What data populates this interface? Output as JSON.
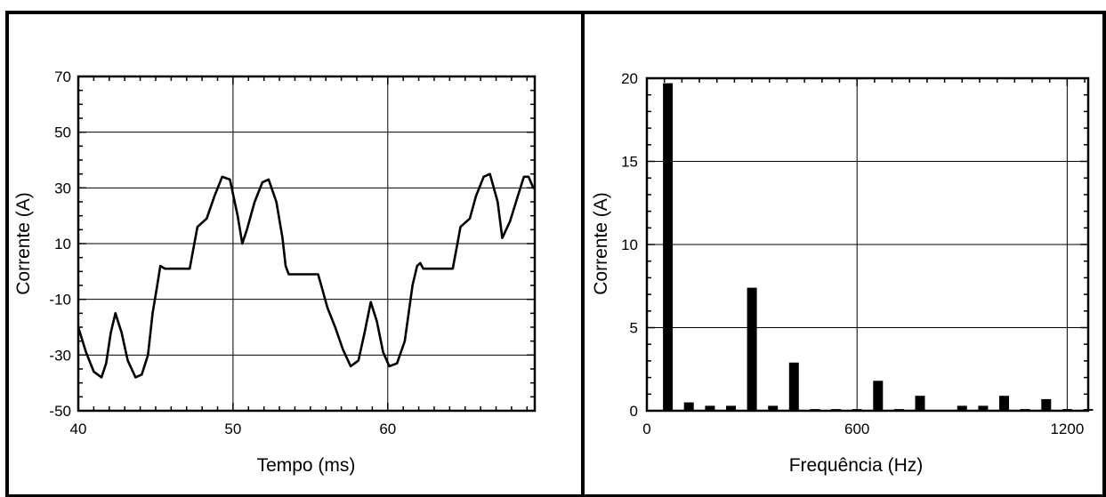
{
  "chart_data": [
    {
      "type": "line",
      "xlabel": "Tempo (ms)",
      "ylabel": "Corrente (A)",
      "xlim": [
        40,
        69.5
      ],
      "ylim": [
        -50,
        70
      ],
      "x_ticks": [
        40,
        50,
        60
      ],
      "y_ticks": [
        -50,
        -30,
        -10,
        10,
        30,
        50,
        70
      ],
      "x_grid": [
        50,
        60
      ],
      "y_grid": [
        -50,
        -30,
        -10,
        10,
        30,
        50,
        70
      ],
      "series": [
        {
          "x": [
            40,
            40.5,
            41,
            41.5,
            41.8,
            42.1,
            42.4,
            42.8,
            43.2,
            43.7,
            44.1,
            44.5,
            44.8,
            45.1,
            45.3,
            45.6,
            47.2,
            47.5,
            47.7,
            48.3,
            48.8,
            49.3,
            49.8,
            50.3,
            50.6,
            50.9,
            51.4,
            51.9,
            52.3,
            52.8,
            53.2,
            53.4,
            53.6,
            55.5,
            55.8,
            56.1,
            56.6,
            57.1,
            57.6,
            58.1,
            58.5,
            58.9,
            59.3,
            59.7,
            60.1,
            60.6,
            61.1,
            61.6,
            61.9,
            62.1,
            62.3,
            64.2,
            64.5,
            64.7,
            65.3,
            65.7,
            66.2,
            66.6,
            67.1,
            67.4,
            67.9,
            68.4,
            68.8,
            69.1,
            69.4
          ],
          "y": [
            -20,
            -29,
            -36,
            -38,
            -33,
            -22,
            -15,
            -22,
            -32,
            -38,
            -37,
            -30,
            -15,
            -5,
            2,
            1,
            1,
            10,
            16,
            19,
            27,
            34,
            33,
            20,
            10,
            15,
            25,
            32,
            33,
            25,
            12,
            2,
            -1,
            -1,
            -7,
            -13,
            -20,
            -28,
            -34,
            -32,
            -22,
            -11,
            -18,
            -29,
            -34,
            -33,
            -25,
            -5,
            2,
            3,
            1,
            1,
            10,
            16,
            19,
            27,
            34,
            35,
            25,
            12,
            18,
            27,
            34,
            34,
            30
          ]
        }
      ]
    },
    {
      "type": "bar",
      "xlabel": "Frequência (Hz)",
      "ylabel": "Corrente (A)",
      "xlim": [
        0,
        1260
      ],
      "ylim": [
        0,
        20
      ],
      "x_ticks": [
        0,
        600,
        1200
      ],
      "y_ticks": [
        0,
        5,
        10,
        15,
        20
      ],
      "x_grid": [
        600,
        1200
      ],
      "y_grid": [
        5,
        10,
        15,
        20
      ],
      "x": [
        60,
        120,
        180,
        240,
        300,
        360,
        420,
        480,
        540,
        600,
        660,
        720,
        780,
        840,
        900,
        960,
        1020,
        1080,
        1140,
        1200,
        1260
      ],
      "values": [
        19.7,
        0.5,
        0.3,
        0.3,
        7.4,
        0.3,
        2.9,
        0.1,
        0.1,
        0.1,
        1.8,
        0.1,
        0.9,
        0.0,
        0.3,
        0.3,
        0.9,
        0.1,
        0.7,
        0.1,
        0.1
      ]
    }
  ]
}
